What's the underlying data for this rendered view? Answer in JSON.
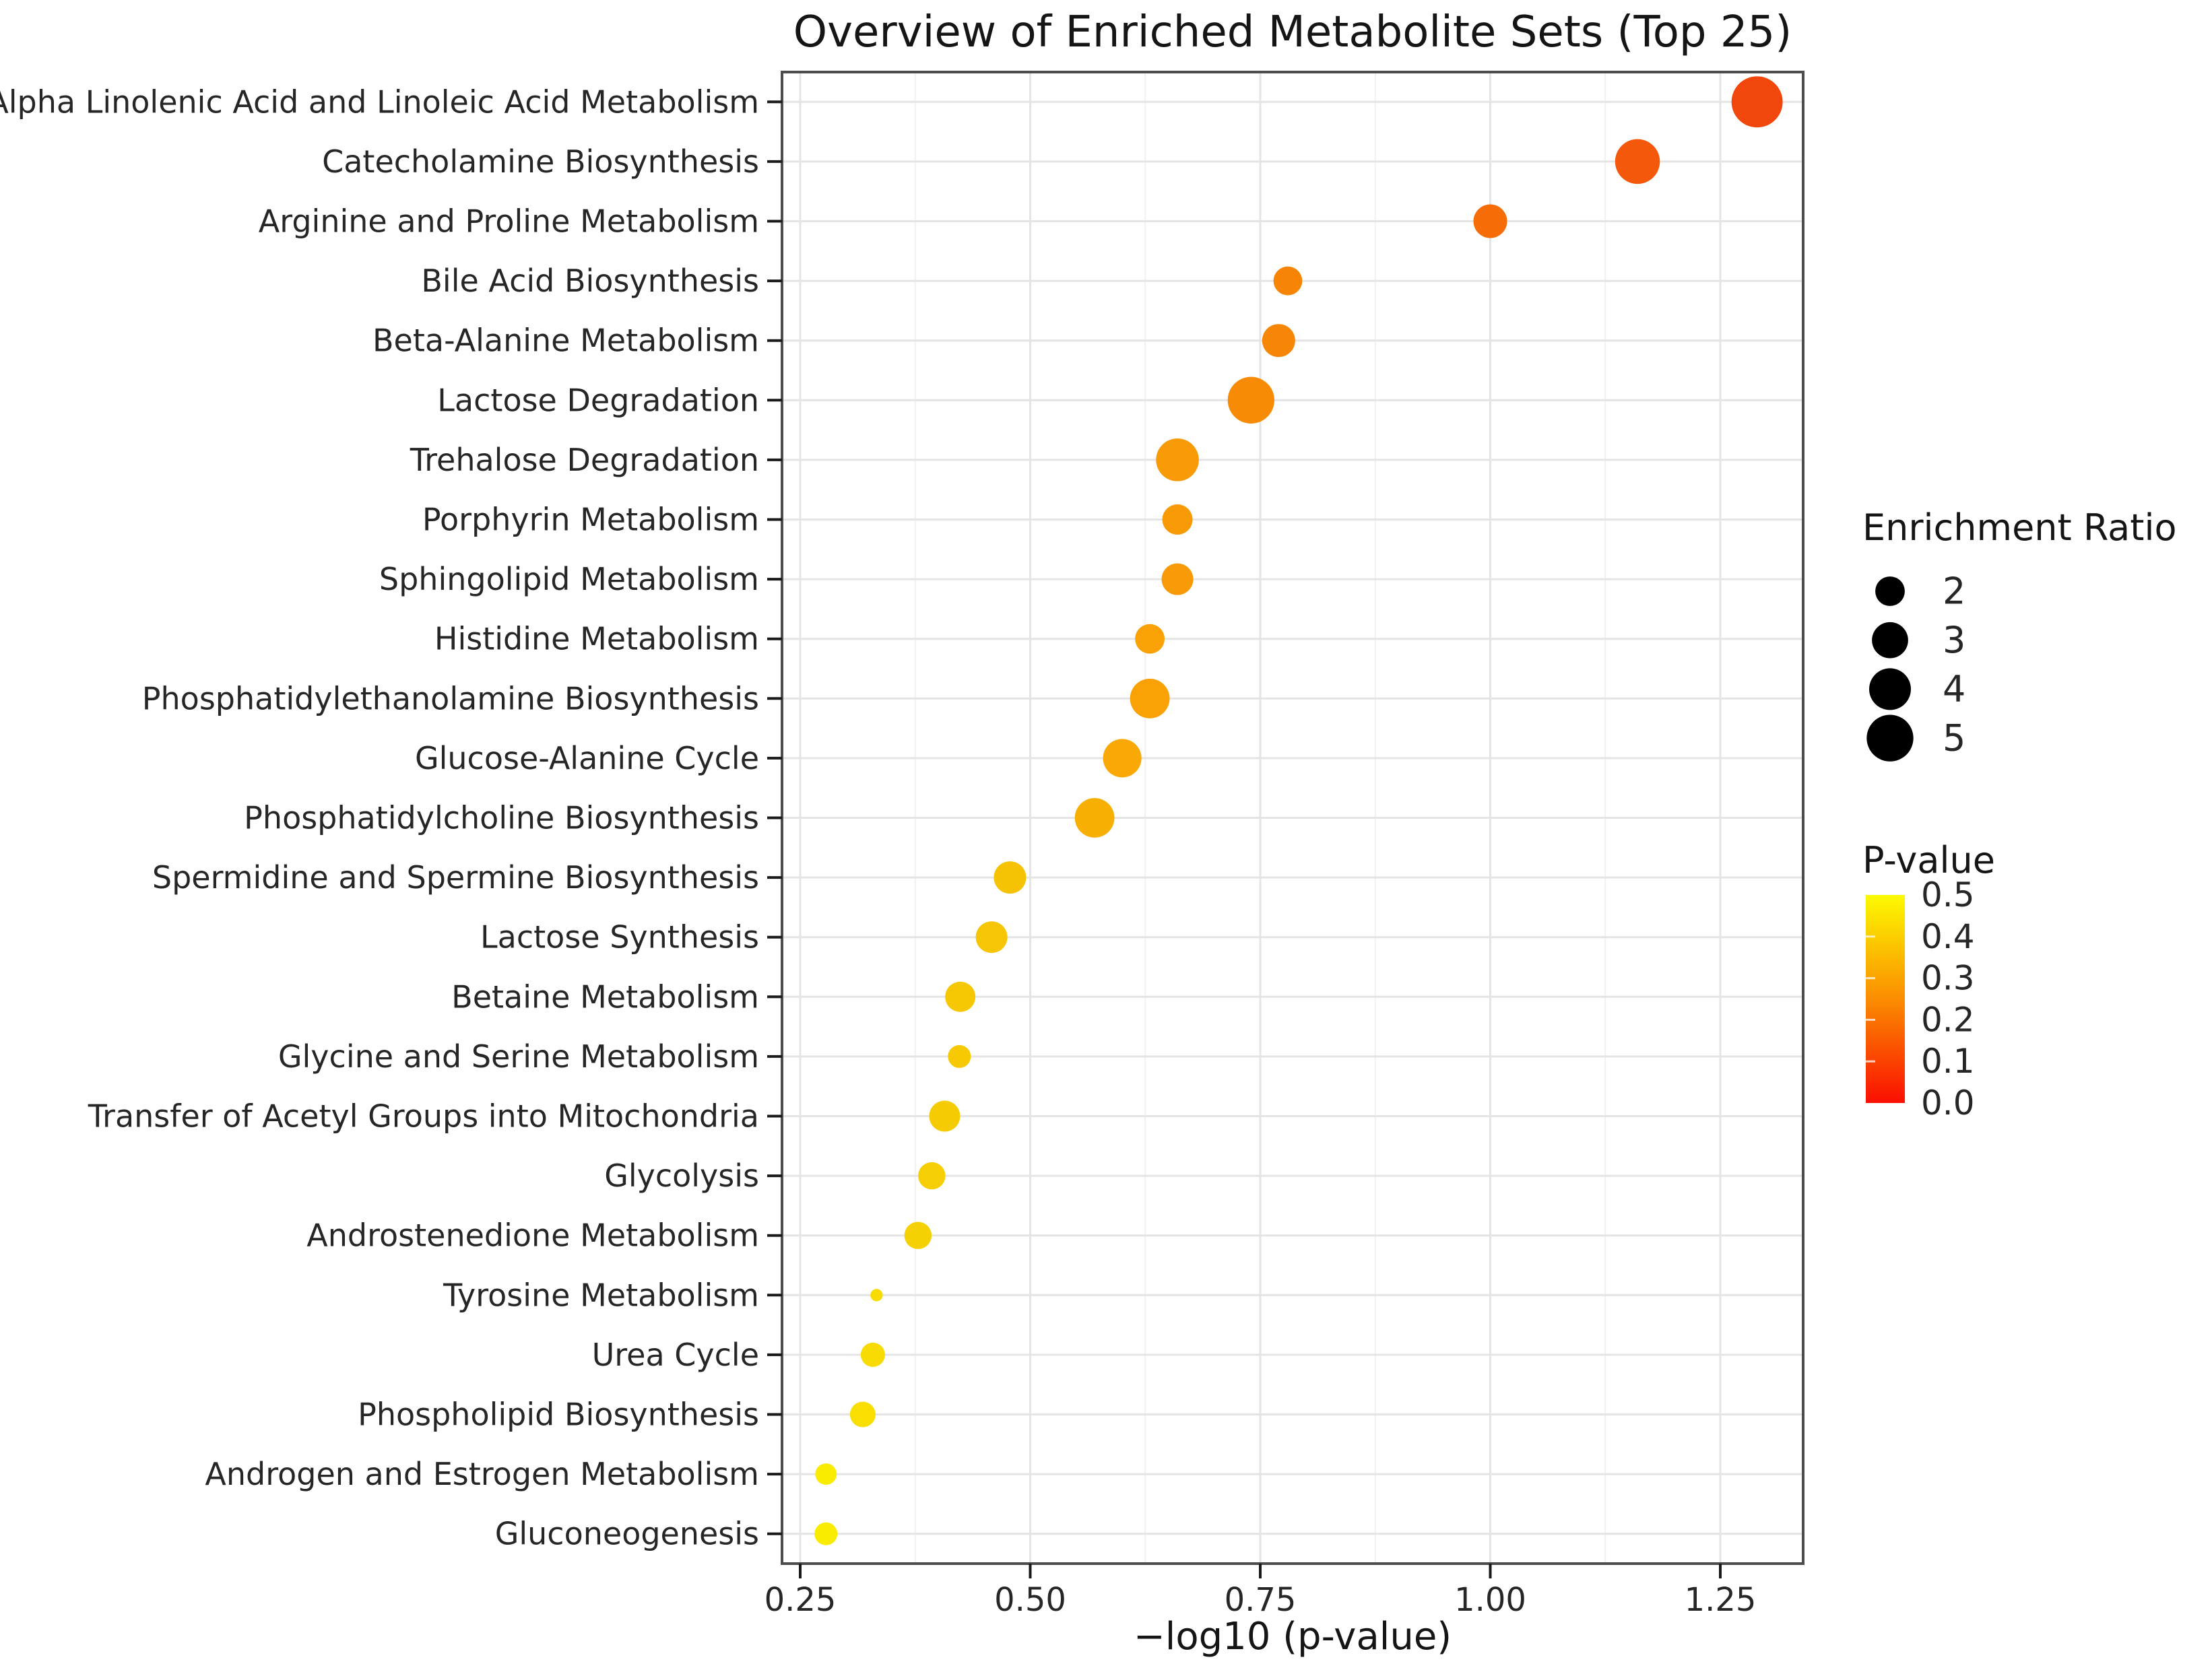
{
  "title": "Overview of Enriched Metabolite Sets (Top 25)",
  "chart_data": {
    "type": "scatter",
    "title": "Overview of Enriched Metabolite Sets (Top 25)",
    "xlabel": "−log10 (p-value)",
    "ylabel": "",
    "xlim": [
      0.23,
      1.34
    ],
    "x_ticks": [
      "0.25",
      "0.50",
      "0.75",
      "1.00",
      "1.25"
    ],
    "x_tick_values": [
      0.25,
      0.5,
      0.75,
      1.0,
      1.25
    ],
    "x_minor_gridlines": [
      0.375,
      0.625,
      0.875,
      1.125
    ],
    "grid": true,
    "legend_position": "right",
    "categories": [
      "Alpha Linolenic Acid and Linoleic Acid Metabolism",
      "Catecholamine Biosynthesis",
      "Arginine and Proline Metabolism",
      "Bile Acid Biosynthesis",
      "Beta-Alanine Metabolism",
      "Lactose Degradation",
      "Trehalose Degradation",
      "Porphyrin Metabolism",
      "Sphingolipid Metabolism",
      "Histidine Metabolism",
      "Phosphatidylethanolamine Biosynthesis",
      "Glucose-Alanine Cycle",
      "Phosphatidylcholine Biosynthesis",
      "Spermidine and Spermine Biosynthesis",
      "Lactose Synthesis",
      "Betaine Metabolism",
      "Glycine and Serine Metabolism",
      "Transfer of Acetyl Groups into Mitochondria",
      "Glycolysis",
      "Androstenedione Metabolism",
      "Tyrosine Metabolism",
      "Urea Cycle",
      "Phospholipid Biosynthesis",
      "Androgen and Estrogen Metabolism",
      "Gluconeogenesis"
    ],
    "points": [
      {
        "name": "Alpha Linolenic Acid and Linoleic Acid Metabolism",
        "neg_log10_p": 1.29,
        "enrichment_ratio": 6.0,
        "color": "#F2470C"
      },
      {
        "name": "Catecholamine Biosynthesis",
        "neg_log10_p": 1.16,
        "enrichment_ratio": 4.6,
        "color": "#F4580A"
      },
      {
        "name": "Arginine and Proline Metabolism",
        "neg_log10_p": 1.0,
        "enrichment_ratio": 2.6,
        "color": "#F66C07"
      },
      {
        "name": "Bile Acid Biosynthesis",
        "neg_log10_p": 0.78,
        "enrichment_ratio": 1.9,
        "color": "#F88406"
      },
      {
        "name": "Beta-Alanine Metabolism",
        "neg_log10_p": 0.77,
        "enrichment_ratio": 2.5,
        "color": "#F88606"
      },
      {
        "name": "Lactose Degradation",
        "neg_log10_p": 0.74,
        "enrichment_ratio": 5.0,
        "color": "#F88B05"
      },
      {
        "name": "Trehalose Degradation",
        "neg_log10_p": 0.66,
        "enrichment_ratio": 4.2,
        "color": "#F89A05"
      },
      {
        "name": "Porphyrin Metabolism",
        "neg_log10_p": 0.66,
        "enrichment_ratio": 2.1,
        "color": "#F89A05"
      },
      {
        "name": "Sphingolipid Metabolism",
        "neg_log10_p": 0.66,
        "enrichment_ratio": 2.3,
        "color": "#F89A05"
      },
      {
        "name": "Histidine Metabolism",
        "neg_log10_p": 0.63,
        "enrichment_ratio": 2.0,
        "color": "#F9A105"
      },
      {
        "name": "Phosphatidylethanolamine Biosynthesis",
        "neg_log10_p": 0.63,
        "enrichment_ratio": 3.6,
        "color": "#F9A105"
      },
      {
        "name": "Glucose-Alanine Cycle",
        "neg_log10_p": 0.6,
        "enrichment_ratio": 3.4,
        "color": "#F9A805"
      },
      {
        "name": "Phosphatidylcholine Biosynthesis",
        "neg_log10_p": 0.57,
        "enrichment_ratio": 3.6,
        "color": "#F8AF04"
      },
      {
        "name": "Spermidine and Spermine Biosynthesis",
        "neg_log10_p": 0.478,
        "enrichment_ratio": 2.4,
        "color": "#F6C204"
      },
      {
        "name": "Lactose Synthesis",
        "neg_log10_p": 0.458,
        "enrichment_ratio": 2.3,
        "color": "#F6C504"
      },
      {
        "name": "Betaine Metabolism",
        "neg_log10_p": 0.424,
        "enrichment_ratio": 2.1,
        "color": "#F6C803"
      },
      {
        "name": "Glycine and Serine Metabolism",
        "neg_log10_p": 0.423,
        "enrichment_ratio": 1.2,
        "color": "#F6C903"
      },
      {
        "name": "Transfer of Acetyl Groups into Mitochondria",
        "neg_log10_p": 0.407,
        "enrichment_ratio": 2.2,
        "color": "#F5CB03"
      },
      {
        "name": "Glycolysis",
        "neg_log10_p": 0.393,
        "enrichment_ratio": 1.7,
        "color": "#F5CE03"
      },
      {
        "name": "Androstenedione Metabolism",
        "neg_log10_p": 0.378,
        "enrichment_ratio": 1.7,
        "color": "#F5D002"
      },
      {
        "name": "Tyrosine Metabolism",
        "neg_log10_p": 0.333,
        "enrichment_ratio": 0.35,
        "color": "#F7DB02"
      },
      {
        "name": "Urea Cycle",
        "neg_log10_p": 0.329,
        "enrichment_ratio": 1.35,
        "color": "#F7DB02"
      },
      {
        "name": "Phospholipid Biosynthesis",
        "neg_log10_p": 0.318,
        "enrichment_ratio": 1.5,
        "color": "#F8DE01"
      },
      {
        "name": "Androgen and Estrogen Metabolism",
        "neg_log10_p": 0.278,
        "enrichment_ratio": 1.05,
        "color": "#FAEC00"
      },
      {
        "name": "Gluconeogenesis",
        "neg_log10_p": 0.278,
        "enrichment_ratio": 1.2,
        "color": "#FAEC00"
      }
    ],
    "size_legend": {
      "title": "Enrichment Ratio",
      "entries": [
        "2",
        "3",
        "4",
        "5"
      ],
      "values": [
        2,
        3,
        4,
        5
      ],
      "dot_color": "#000000"
    },
    "color_legend": {
      "title": "P-value",
      "tick_labels": [
        "0.5",
        "0.4",
        "0.3",
        "0.2",
        "0.1",
        "0.0"
      ],
      "gradient_top": "#FCFA00",
      "gradient_mid": "#FB8D00",
      "gradient_bottom": "#FB0F00"
    },
    "style": {
      "panel_border": "#4D4D4D",
      "grid_major": "#E4E4E4",
      "grid_minor": "#F1F1F1",
      "tick_color": "#1A1A1A",
      "label_color": "#262626"
    }
  }
}
